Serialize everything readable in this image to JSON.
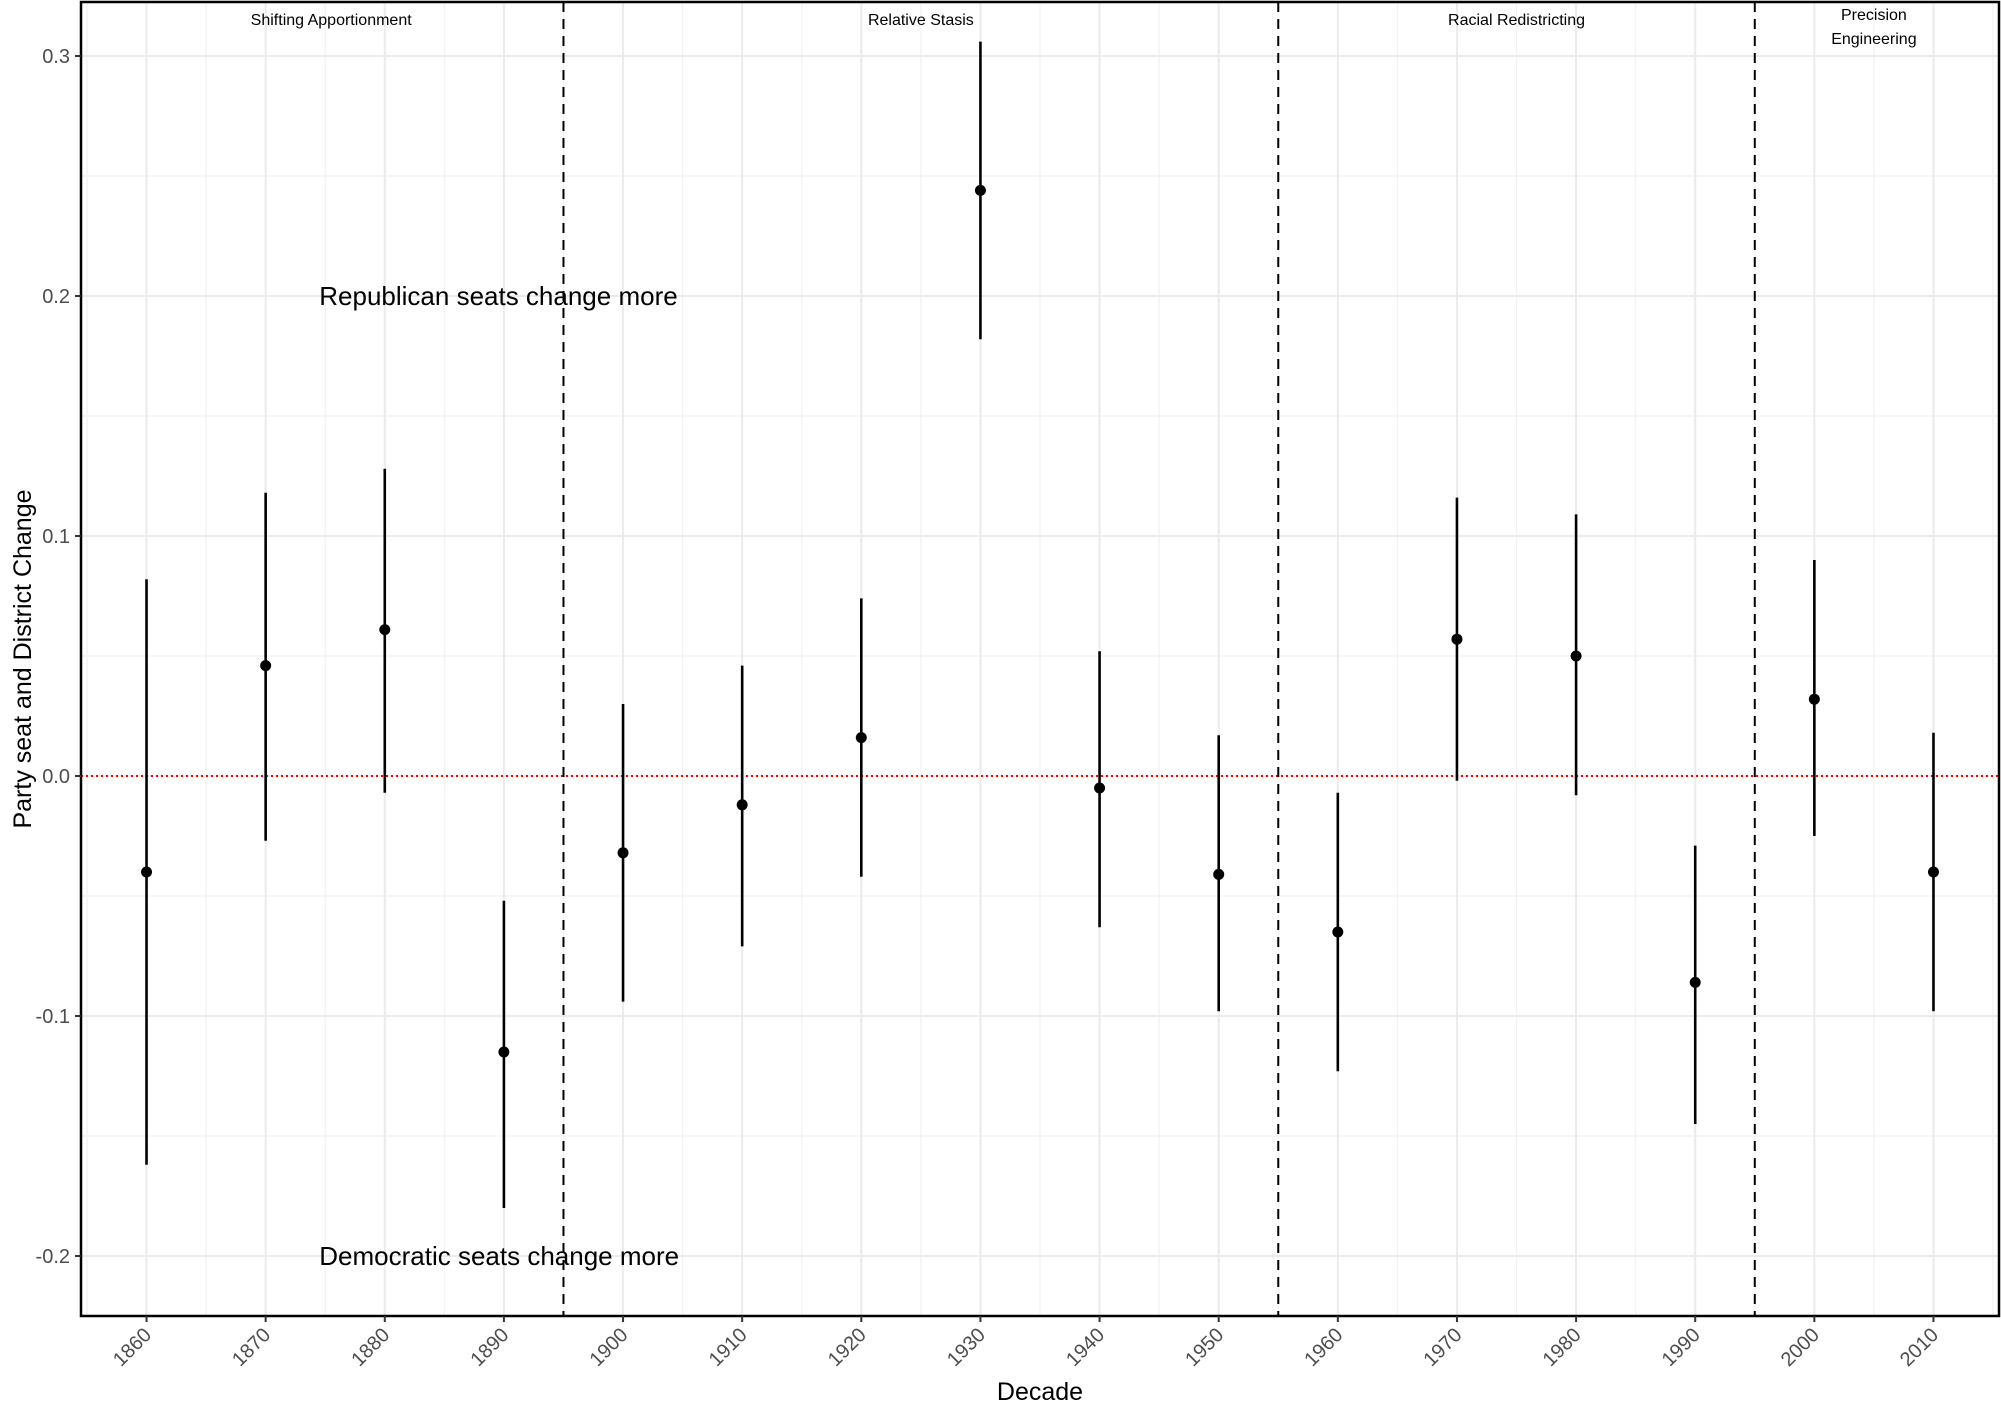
{
  "chart_data": {
    "type": "scatter",
    "xlabel": "Decade",
    "ylabel": "Party seat and District Change",
    "categories": [
      "1860",
      "1870",
      "1880",
      "1890",
      "1900",
      "1910",
      "1920",
      "1930",
      "1940",
      "1950",
      "1960",
      "1970",
      "1980",
      "1990",
      "2000",
      "2010"
    ],
    "estimates": [
      -0.04,
      0.046,
      0.061,
      -0.115,
      -0.032,
      -0.012,
      0.016,
      0.244,
      -0.005,
      -0.041,
      -0.065,
      0.057,
      0.05,
      -0.086,
      0.032,
      -0.04
    ],
    "lower": [
      -0.162,
      -0.027,
      -0.007,
      -0.18,
      -0.094,
      -0.071,
      -0.042,
      0.182,
      -0.063,
      -0.098,
      -0.123,
      -0.002,
      -0.008,
      -0.145,
      -0.025,
      -0.098
    ],
    "upper": [
      0.082,
      0.118,
      0.128,
      -0.052,
      0.03,
      0.046,
      0.074,
      0.306,
      0.052,
      0.017,
      -0.007,
      0.116,
      0.109,
      -0.029,
      0.09,
      0.018
    ],
    "ylim": [
      -0.225,
      0.3225
    ],
    "yticks": [
      "-0.2",
      "-0.1",
      "0.0",
      "0.1",
      "0.2",
      "0.3"
    ],
    "ytick_values": [
      -0.2,
      -0.1,
      0.0,
      0.1,
      0.2,
      0.3
    ],
    "reference_line": {
      "y": 0.0,
      "color": "#ff0000",
      "style": "dotted"
    },
    "era_dividers": [
      1895,
      1955,
      1995
    ],
    "eras": [
      {
        "label_lines": [
          "Shifting Apportionment"
        ],
        "center": 1875.5
      },
      {
        "label_lines": [
          "Relative Stasis"
        ],
        "center": 1925
      },
      {
        "label_lines": [
          "Racial Redistricting"
        ],
        "center": 1975
      },
      {
        "label_lines": [
          "Precision",
          "Engineering"
        ],
        "center": 2005
      }
    ],
    "annotations": [
      {
        "text": "Republican seats change more",
        "x": 1874.5,
        "y": 0.2
      },
      {
        "text": "Democratic seats change more",
        "x": 1874.5,
        "y": -0.2
      }
    ],
    "grid": true,
    "legend": "none",
    "colors": {
      "points": "#000000",
      "grid": "#ebebeb",
      "reference": "#ff0000"
    }
  }
}
